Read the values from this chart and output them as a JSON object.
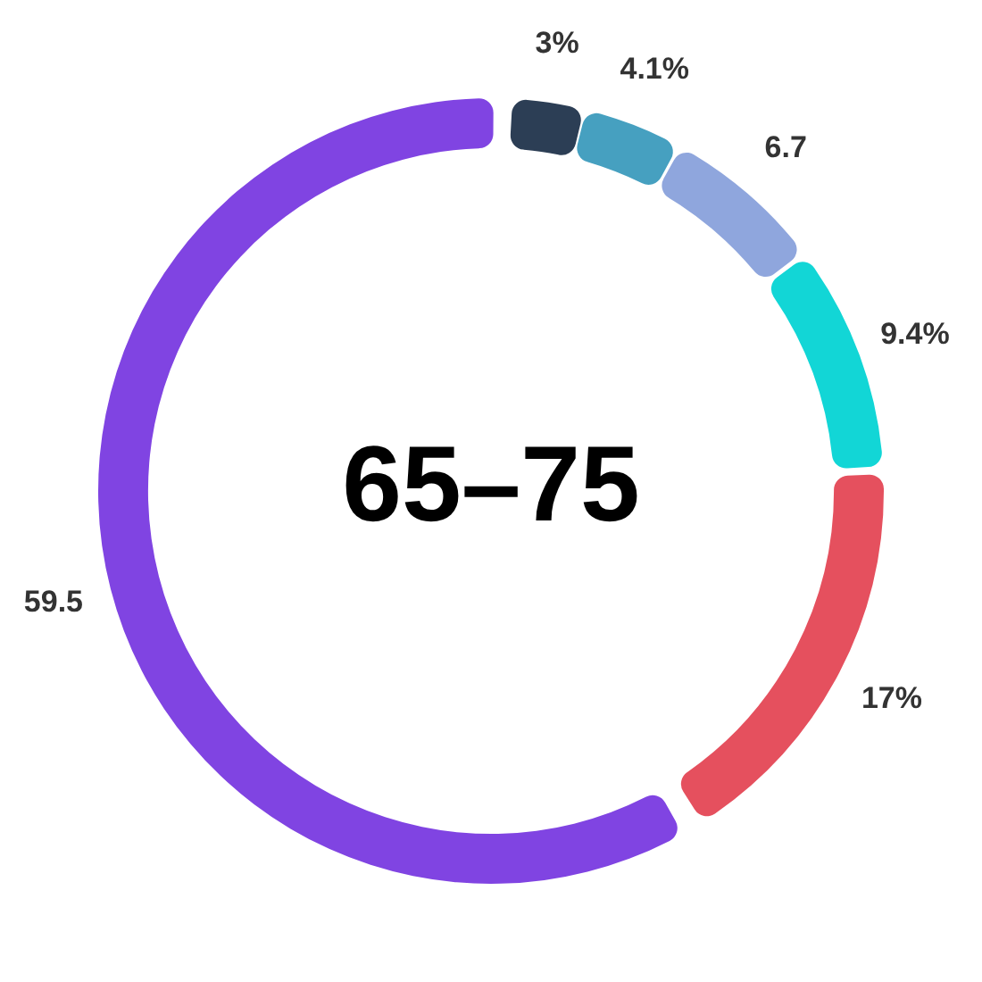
{
  "chart_data": {
    "type": "donut",
    "title": "65–75",
    "categories": [
      null,
      null,
      null,
      null,
      null,
      null
    ],
    "values": [
      3,
      4.1,
      6.7,
      9.4,
      17,
      59.5
    ],
    "value_labels": [
      "3%",
      "4.1%",
      "6.7",
      "9.4%",
      "17%",
      "59.5"
    ],
    "colors": [
      "#2c3e55",
      "#46a0c0",
      "#8fa6dd",
      "#12d6d6",
      "#e5505e",
      "#8044e2"
    ],
    "legend": false
  }
}
